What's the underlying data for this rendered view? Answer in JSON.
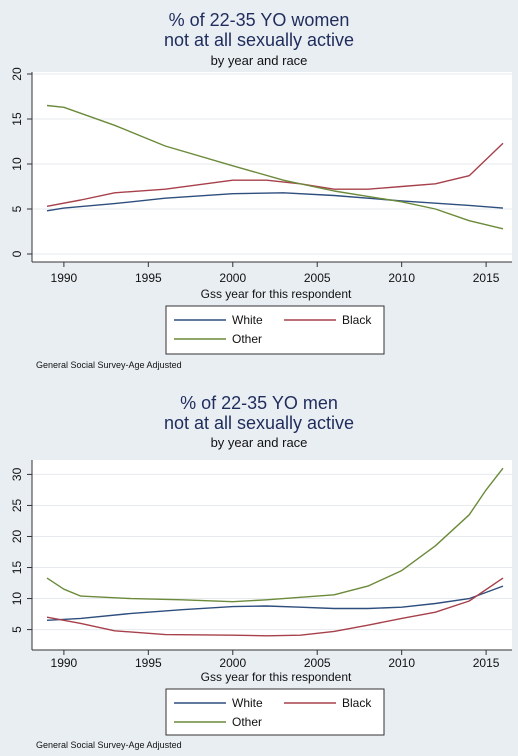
{
  "chart_data": [
    {
      "type": "line",
      "title": [
        "% of 22-35 YO women",
        "not at all sexually active"
      ],
      "subtitle": "by year and race",
      "xlabel": "Gss year for this respondent",
      "ylabel": "",
      "xlim": [
        1989,
        2016
      ],
      "ylim": [
        0,
        20
      ],
      "xticks": [
        1990,
        1995,
        2000,
        2005,
        2010,
        2015
      ],
      "yticks": [
        0,
        5,
        10,
        15,
        20
      ],
      "grid": true,
      "legend_position": "bottom",
      "note": "General Social Survey-Age Adjusted",
      "series": [
        {
          "name": "White",
          "color": "#2e4e7e",
          "x": [
            1989,
            1990,
            1993,
            1996,
            2000,
            2003,
            2006,
            2010,
            2014,
            2016
          ],
          "y": [
            4.8,
            5.1,
            5.6,
            6.2,
            6.7,
            6.8,
            6.5,
            5.9,
            5.4,
            5.1
          ]
        },
        {
          "name": "Black",
          "color": "#a7404a",
          "x": [
            1989,
            1991,
            1993,
            1996,
            2000,
            2002,
            2004,
            2006,
            2008,
            2010,
            2012,
            2014,
            2015,
            2016
          ],
          "y": [
            5.3,
            6.0,
            6.8,
            7.2,
            8.2,
            8.2,
            7.8,
            7.2,
            7.2,
            7.5,
            7.8,
            8.7,
            10.5,
            12.3
          ]
        },
        {
          "name": "Other",
          "color": "#6b8a3a",
          "x": [
            1989,
            1990,
            1993,
            1996,
            2000,
            2003,
            2006,
            2008,
            2010,
            2012,
            2014,
            2016
          ],
          "y": [
            16.5,
            16.3,
            14.3,
            12.0,
            9.8,
            8.2,
            7.0,
            6.4,
            5.8,
            5.0,
            3.7,
            2.8
          ]
        }
      ]
    },
    {
      "type": "line",
      "title": [
        "% of 22-35 YO men",
        "not at all sexually active"
      ],
      "subtitle": "by year and race",
      "xlabel": "Gss year for this respondent",
      "ylabel": "",
      "xlim": [
        1989,
        2016
      ],
      "ylim": [
        3,
        32
      ],
      "xticks": [
        1990,
        1995,
        2000,
        2005,
        2010,
        2015
      ],
      "yticks": [
        5,
        10,
        15,
        20,
        25,
        30
      ],
      "grid": true,
      "legend_position": "bottom",
      "note": "General Social Survey-Age Adjusted",
      "series": [
        {
          "name": "White",
          "color": "#2e4e7e",
          "x": [
            1989,
            1991,
            1994,
            1997,
            2000,
            2002,
            2004,
            2006,
            2008,
            2010,
            2012,
            2014,
            2016
          ],
          "y": [
            6.5,
            6.8,
            7.6,
            8.2,
            8.7,
            8.8,
            8.6,
            8.4,
            8.4,
            8.6,
            9.2,
            10.0,
            12.0
          ]
        },
        {
          "name": "Black",
          "color": "#a7404a",
          "x": [
            1989,
            1991,
            1993,
            1996,
            2000,
            2002,
            2004,
            2006,
            2008,
            2010,
            2012,
            2014,
            2016
          ],
          "y": [
            7.0,
            6.0,
            4.8,
            4.2,
            4.1,
            4.0,
            4.1,
            4.7,
            5.7,
            6.8,
            7.8,
            9.6,
            13.3
          ]
        },
        {
          "name": "Other",
          "color": "#6b8a3a",
          "x": [
            1989,
            1990,
            1991,
            1994,
            1997,
            2000,
            2002,
            2004,
            2006,
            2008,
            2010,
            2012,
            2014,
            2015,
            2016
          ],
          "y": [
            13.3,
            11.5,
            10.4,
            10.0,
            9.8,
            9.5,
            9.8,
            10.2,
            10.6,
            12.0,
            14.5,
            18.5,
            23.5,
            27.5,
            31.0
          ]
        }
      ]
    }
  ]
}
